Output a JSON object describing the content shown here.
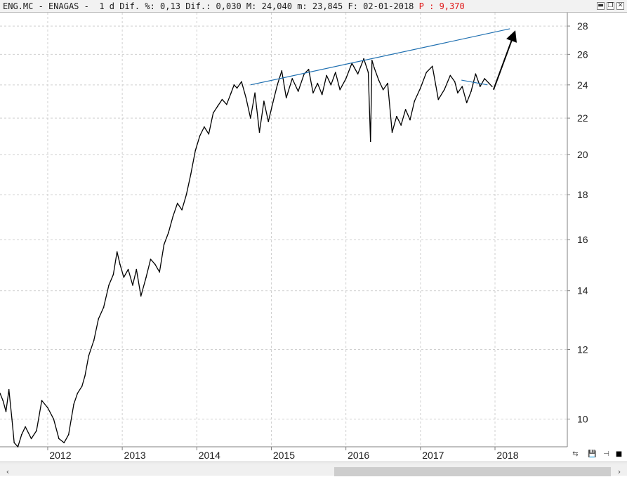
{
  "header": {
    "symbol": "ENG.MC",
    "name": "ENAGAS",
    "period": "1 d",
    "dif_pct_label": "Dif. %:",
    "dif_pct": "0,13",
    "dif_label": "Dif.:",
    "dif": "0,030",
    "max_label": "M:",
    "max": "24,040",
    "min_label": "m:",
    "min": "23,845",
    "date_label": "F:",
    "date": "02-01-2018",
    "p_label": "P :",
    "p_value": "9,370"
  },
  "window_buttons": {
    "minimize": "▬",
    "restore": "❐",
    "close": "✕"
  },
  "toolbar": {
    "icon1": "⇆",
    "icon2": "💾",
    "icon3": "⊣",
    "icon4": "■"
  },
  "scrollbar": {
    "left": "‹",
    "right": "›"
  },
  "colors": {
    "price": "#000000",
    "trendline": "#1e6fb0",
    "arrow": "#000000",
    "grid": "#d0d0d0",
    "header_red": "#e01818"
  },
  "chart_data": {
    "type": "line",
    "title": "",
    "xlabel": "",
    "ylabel": "",
    "yscale": "log",
    "ylim": [
      9.3,
      29
    ],
    "xlim": [
      2011.36,
      2018.97
    ],
    "x_ticks": [
      "2012",
      "2013",
      "2014",
      "2015",
      "2016",
      "2017",
      "2018"
    ],
    "y_ticks": [
      10,
      12,
      14,
      16,
      18,
      20,
      22,
      24,
      26,
      28
    ],
    "grid": true,
    "series": [
      {
        "x": [
          2011.36,
          2011.4,
          2011.44,
          2011.48,
          2011.52,
          2011.55,
          2011.6,
          2011.65,
          2011.7,
          2011.78,
          2011.85,
          2011.92,
          2012.0,
          2012.08,
          2012.15,
          2012.22,
          2012.28,
          2012.35,
          2012.4,
          2012.46,
          2012.5,
          2012.55,
          2012.62,
          2012.68,
          2012.75,
          2012.82,
          2012.88,
          2012.93,
          2012.97,
          2013.02,
          2013.08,
          2013.14,
          2013.19,
          2013.25,
          2013.32,
          2013.38,
          2013.44,
          2013.5,
          2013.56,
          2013.62,
          2013.68,
          2013.74,
          2013.8,
          2013.86,
          2013.92,
          2013.98,
          2014.04,
          2014.1,
          2014.16,
          2014.22,
          2014.28,
          2014.34,
          2014.4,
          2014.46,
          2014.5,
          2014.54,
          2014.6,
          2014.66,
          2014.72,
          2014.78,
          2014.84,
          2014.9,
          2014.96,
          2015.02,
          2015.08,
          2015.14,
          2015.2,
          2015.28,
          2015.36,
          2015.44,
          2015.5,
          2015.56,
          2015.62,
          2015.68,
          2015.74,
          2015.8,
          2015.86,
          2015.92,
          2016.0,
          2016.08,
          2016.16,
          2016.24,
          2016.3,
          2016.33,
          2016.35,
          2016.38,
          2016.44,
          2016.5,
          2016.56,
          2016.62,
          2016.68,
          2016.74,
          2016.8,
          2016.86,
          2016.92,
          2017.0,
          2017.08,
          2017.16,
          2017.24,
          2017.32,
          2017.4,
          2017.46,
          2017.5,
          2017.56,
          2017.62,
          2017.68,
          2017.74,
          2017.8,
          2017.86,
          2017.92,
          2017.96
        ],
        "y": [
          10.7,
          10.5,
          10.2,
          10.8,
          10.0,
          9.4,
          9.3,
          9.6,
          9.8,
          9.5,
          9.7,
          10.5,
          10.3,
          10.0,
          9.5,
          9.4,
          9.6,
          10.4,
          10.7,
          10.9,
          11.2,
          11.8,
          12.3,
          13.0,
          13.4,
          14.2,
          14.6,
          15.5,
          15.0,
          14.5,
          14.8,
          14.2,
          14.8,
          13.8,
          14.5,
          15.2,
          15.0,
          14.7,
          15.8,
          16.3,
          17.0,
          17.6,
          17.3,
          18.0,
          19.0,
          20.2,
          21.0,
          21.5,
          21.1,
          22.3,
          22.7,
          23.1,
          22.8,
          23.5,
          24.0,
          23.8,
          24.2,
          23.2,
          22.0,
          23.5,
          21.2,
          23.0,
          21.8,
          22.9,
          24.0,
          24.9,
          23.2,
          24.4,
          23.6,
          24.7,
          25.0,
          23.5,
          24.1,
          23.4,
          24.6,
          24.0,
          24.8,
          23.7,
          24.4,
          25.4,
          24.7,
          25.7,
          24.8,
          20.7,
          25.6,
          25.1,
          24.3,
          23.7,
          24.1,
          21.2,
          22.1,
          21.6,
          22.5,
          21.9,
          23.0,
          23.8,
          24.8,
          25.2,
          23.1,
          23.7,
          24.6,
          24.2,
          23.5,
          23.9,
          22.9,
          23.6,
          24.7,
          23.9,
          24.4,
          24.1,
          23.9
        ]
      }
    ],
    "annotations": [
      {
        "type": "trendline",
        "x": [
          2014.72,
          2018.2
        ],
        "y": [
          24.0,
          27.8
        ]
      },
      {
        "type": "trendline",
        "x": [
          2017.55,
          2017.9
        ],
        "y": [
          24.3,
          24.0
        ]
      },
      {
        "type": "arrow",
        "x": [
          2017.98,
          2018.26
        ],
        "y": [
          23.7,
          27.5
        ]
      }
    ]
  }
}
